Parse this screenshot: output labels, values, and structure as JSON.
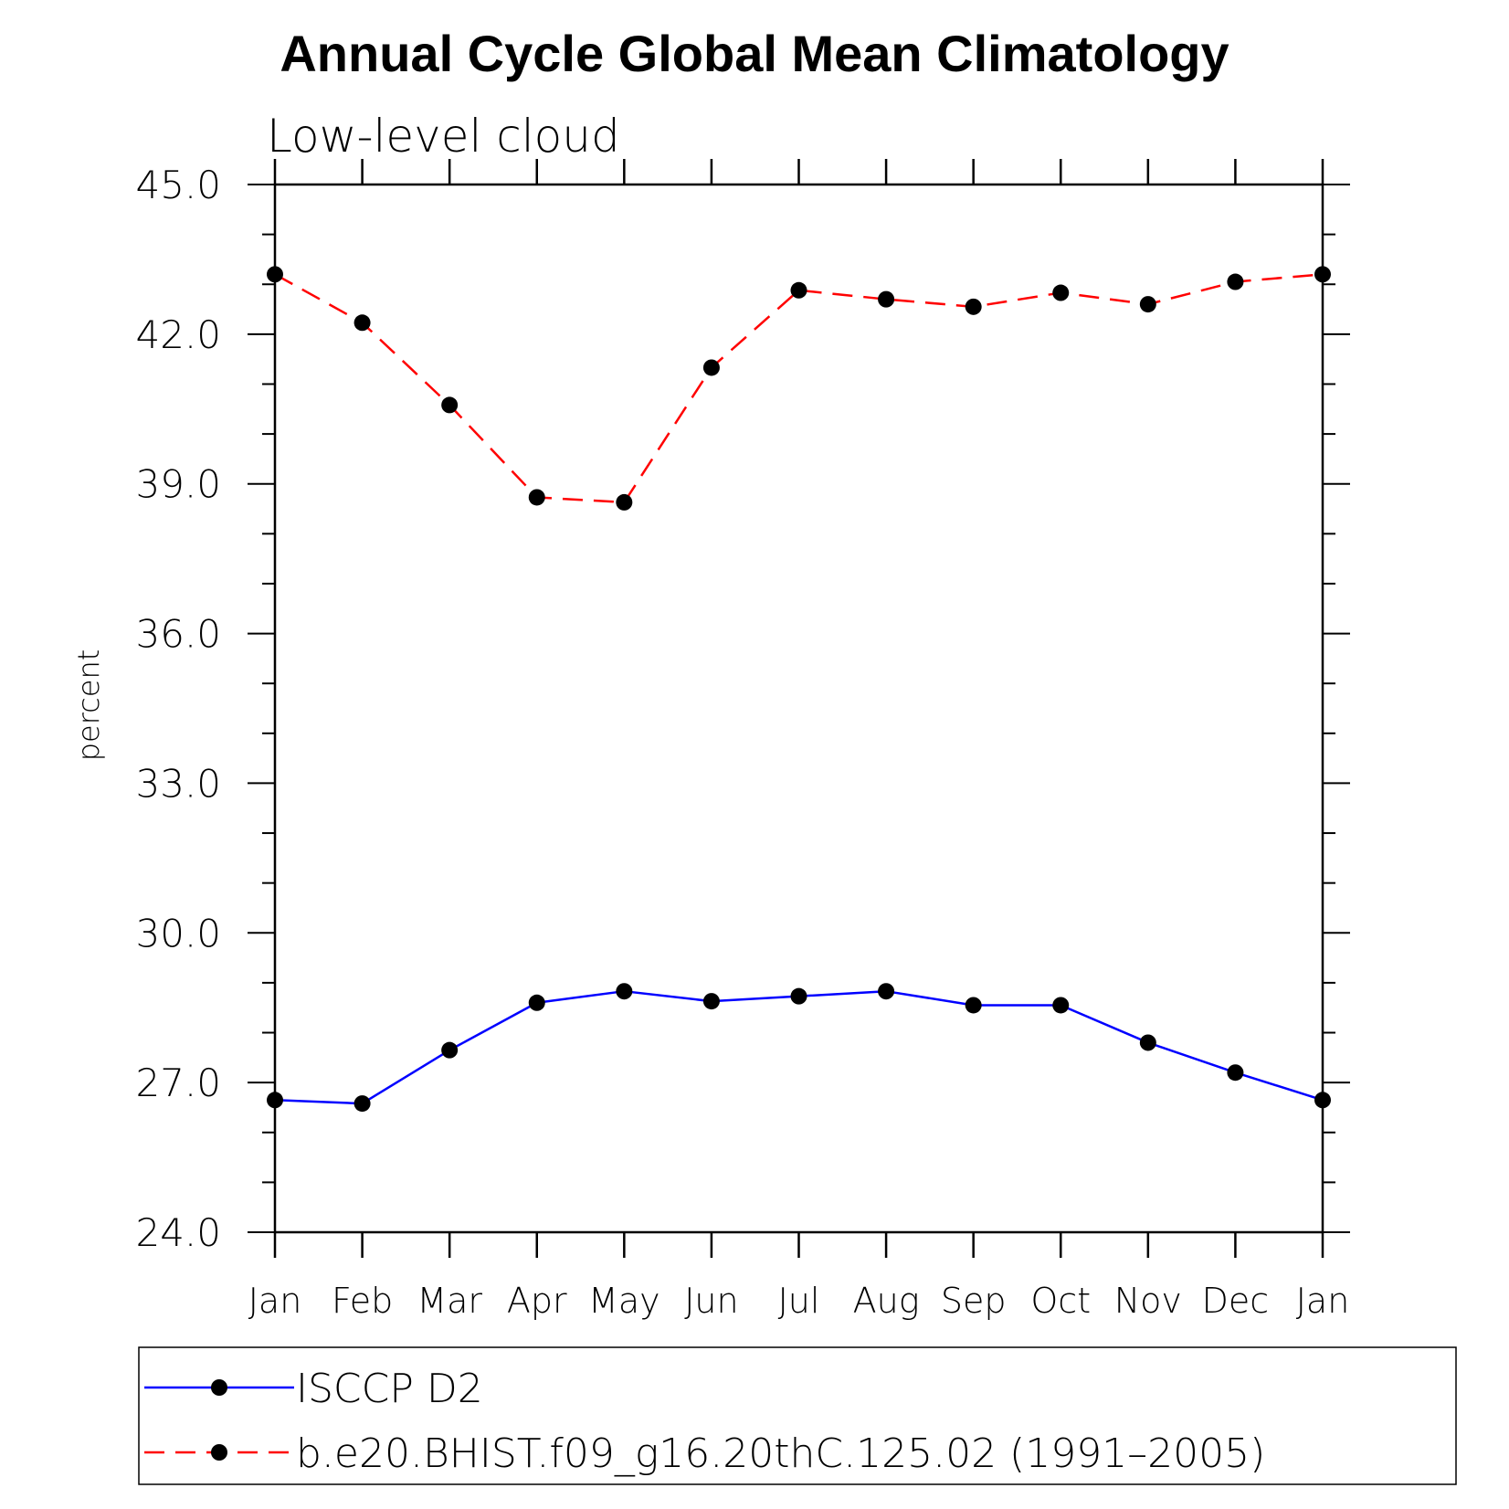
{
  "chart_data": {
    "type": "line",
    "title": "Annual Cycle Global Mean Climatology",
    "subtitle": "Low-level cloud",
    "ylabel": "percent",
    "xlabel": "",
    "ylim": [
      24.0,
      45.0
    ],
    "yticks": [
      "24.0",
      "27.0",
      "30.0",
      "33.0",
      "36.0",
      "39.0",
      "42.0",
      "45.0"
    ],
    "categories": [
      "Jan",
      "Feb",
      "Mar",
      "Apr",
      "May",
      "Jun",
      "Jul",
      "Aug",
      "Sep",
      "Oct",
      "Nov",
      "Dec",
      "Jan"
    ],
    "legend_position": "bottom",
    "series": [
      {
        "name": "ISCCP D2",
        "color": "#0000ff",
        "line_style": "solid",
        "marker": "filled-circle",
        "values": [
          26.65,
          26.58,
          27.65,
          28.6,
          28.83,
          28.63,
          28.73,
          28.83,
          28.55,
          28.55,
          27.8,
          27.2,
          26.65
        ]
      },
      {
        "name": "b.e20.BHIST.f09_g16.20thC.125.02 (1991–2005)",
        "color": "#ff0000",
        "line_style": "dashed",
        "marker": "filled-circle",
        "values": [
          43.2,
          42.23,
          40.58,
          38.73,
          38.63,
          41.33,
          42.88,
          42.7,
          42.55,
          42.83,
          42.6,
          43.05,
          43.2
        ]
      }
    ]
  }
}
